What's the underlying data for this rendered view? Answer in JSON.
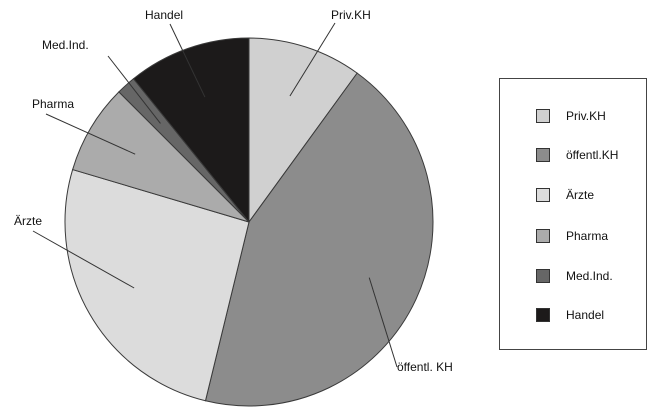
{
  "chart_data": {
    "type": "pie",
    "title": "",
    "start_angle_deg": 0,
    "direction": "clockwise",
    "slices": [
      {
        "label": "Priv.KH",
        "slice_label": "Priv.KH",
        "value": 10.0,
        "color": "#d0d0d0"
      },
      {
        "label": "öffentl.KH",
        "slice_label": "öffentl. KH",
        "value": 43.8,
        "color": "#8c8c8c"
      },
      {
        "label": "Ärzte",
        "slice_label": "Ärzte",
        "value": 25.8,
        "color": "#dcdcdc"
      },
      {
        "label": "Pharma",
        "slice_label": "Pharma",
        "value": 7.9,
        "color": "#ababab"
      },
      {
        "label": "Med.Ind.",
        "slice_label": "Med.Ind.",
        "value": 1.7,
        "color": "#666666"
      },
      {
        "label": "Handel",
        "slice_label": "Handel",
        "value": 10.8,
        "color": "#1c1a1a"
      }
    ],
    "legend_placement": "right"
  }
}
